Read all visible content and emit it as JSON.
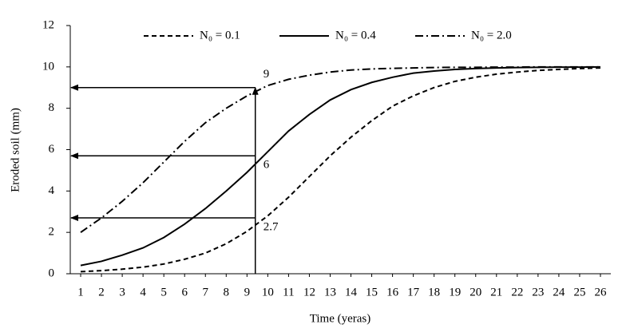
{
  "chart_data": {
    "type": "line",
    "x_label": "Time (yeras)",
    "y_label": "Eroded soil (mm)",
    "x": [
      1,
      2,
      3,
      4,
      5,
      6,
      7,
      8,
      9,
      10,
      11,
      12,
      13,
      14,
      15,
      16,
      17,
      18,
      19,
      20,
      21,
      22,
      23,
      24,
      25,
      26
    ],
    "xlim": [
      0.5,
      26.5
    ],
    "xticks": [
      1,
      2,
      3,
      4,
      5,
      6,
      7,
      8,
      9,
      10,
      11,
      12,
      13,
      14,
      15,
      16,
      17,
      18,
      19,
      20,
      21,
      22,
      23,
      24,
      25,
      26
    ],
    "ylim": [
      0,
      12
    ],
    "yticks": [
      0,
      2,
      4,
      6,
      8,
      10,
      12
    ],
    "grid": false,
    "legend": "top",
    "series": [
      {
        "name": "N₀ = 0.1",
        "color": "#000000",
        "dash": "dashed",
        "values": [
          0.1,
          0.15,
          0.22,
          0.32,
          0.47,
          0.7,
          1.0,
          1.45,
          2.05,
          2.8,
          3.7,
          4.7,
          5.7,
          6.6,
          7.4,
          8.1,
          8.6,
          9.0,
          9.3,
          9.5,
          9.65,
          9.75,
          9.83,
          9.88,
          9.92,
          9.95
        ]
      },
      {
        "name": "N₀ = 0.4",
        "color": "#000000",
        "dash": "solid",
        "values": [
          0.4,
          0.6,
          0.9,
          1.25,
          1.75,
          2.4,
          3.15,
          4.0,
          4.9,
          5.9,
          6.9,
          7.7,
          8.4,
          8.9,
          9.25,
          9.5,
          9.7,
          9.8,
          9.88,
          9.92,
          9.95,
          9.97,
          9.98,
          9.99,
          9.99,
          10.0
        ]
      },
      {
        "name": "N₀ = 2.0",
        "color": "#000000",
        "dash": "dashdot",
        "values": [
          2.0,
          2.7,
          3.5,
          4.4,
          5.4,
          6.4,
          7.3,
          8.0,
          8.6,
          9.1,
          9.4,
          9.6,
          9.75,
          9.85,
          9.9,
          9.93,
          9.95,
          9.97,
          9.98,
          9.98,
          9.99,
          9.99,
          10.0,
          10.0,
          10.0,
          10.0
        ]
      }
    ],
    "reference_x": 9.4,
    "annotations": [
      {
        "value": 9,
        "label": "9"
      },
      {
        "value": 5.7,
        "label": "6"
      },
      {
        "value": 2.7,
        "label": "2.7"
      }
    ]
  }
}
